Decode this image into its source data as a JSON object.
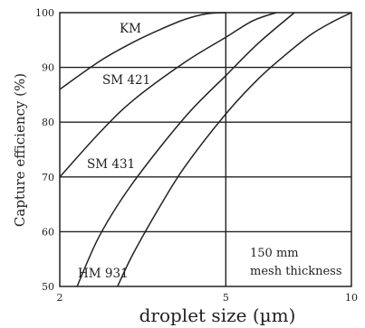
{
  "chart_data": {
    "type": "line",
    "xlabel": "droplet size (µm)",
    "ylabel": "Capture efficiency (%)",
    "x_scale": "log",
    "xlim": [
      2,
      10
    ],
    "ylim": [
      50,
      100
    ],
    "xticks": [
      2,
      5,
      10
    ],
    "yticks": [
      50,
      60,
      70,
      80,
      90,
      100
    ],
    "grid": "horizontal gridlines at each y tick plus a vertical line at x = 5",
    "annotation": [
      "150 mm",
      "mesh thickness"
    ],
    "series": [
      {
        "name": "KM",
        "x": [
          2.0,
          2.5,
          3.0,
          3.5,
          4.0,
          4.5,
          5.0
        ],
        "y": [
          86,
          91.2,
          94.6,
          97.0,
          98.8,
          99.8,
          100
        ]
      },
      {
        "name": "SM 421",
        "x": [
          2.0,
          2.5,
          3.0,
          4.0,
          5.0,
          5.8,
          6.6
        ],
        "y": [
          70,
          78.2,
          84.0,
          91.0,
          95.5,
          98.5,
          100
        ]
      },
      {
        "name": "SM 431",
        "x": [
          2.2,
          2.5,
          3.0,
          4.0,
          5.0,
          6.0,
          7.3
        ],
        "y": [
          50,
          59.5,
          69.0,
          81.0,
          88.5,
          94.5,
          100
        ]
      },
      {
        "name": "HM 931",
        "x": [
          2.75,
          3.0,
          3.5,
          4.0,
          5.0,
          6.0,
          7.0,
          8.0,
          9.0,
          10.0
        ],
        "y": [
          50,
          56.0,
          65.0,
          72.0,
          81.5,
          88.0,
          92.5,
          96.0,
          98.3,
          100
        ]
      }
    ]
  }
}
